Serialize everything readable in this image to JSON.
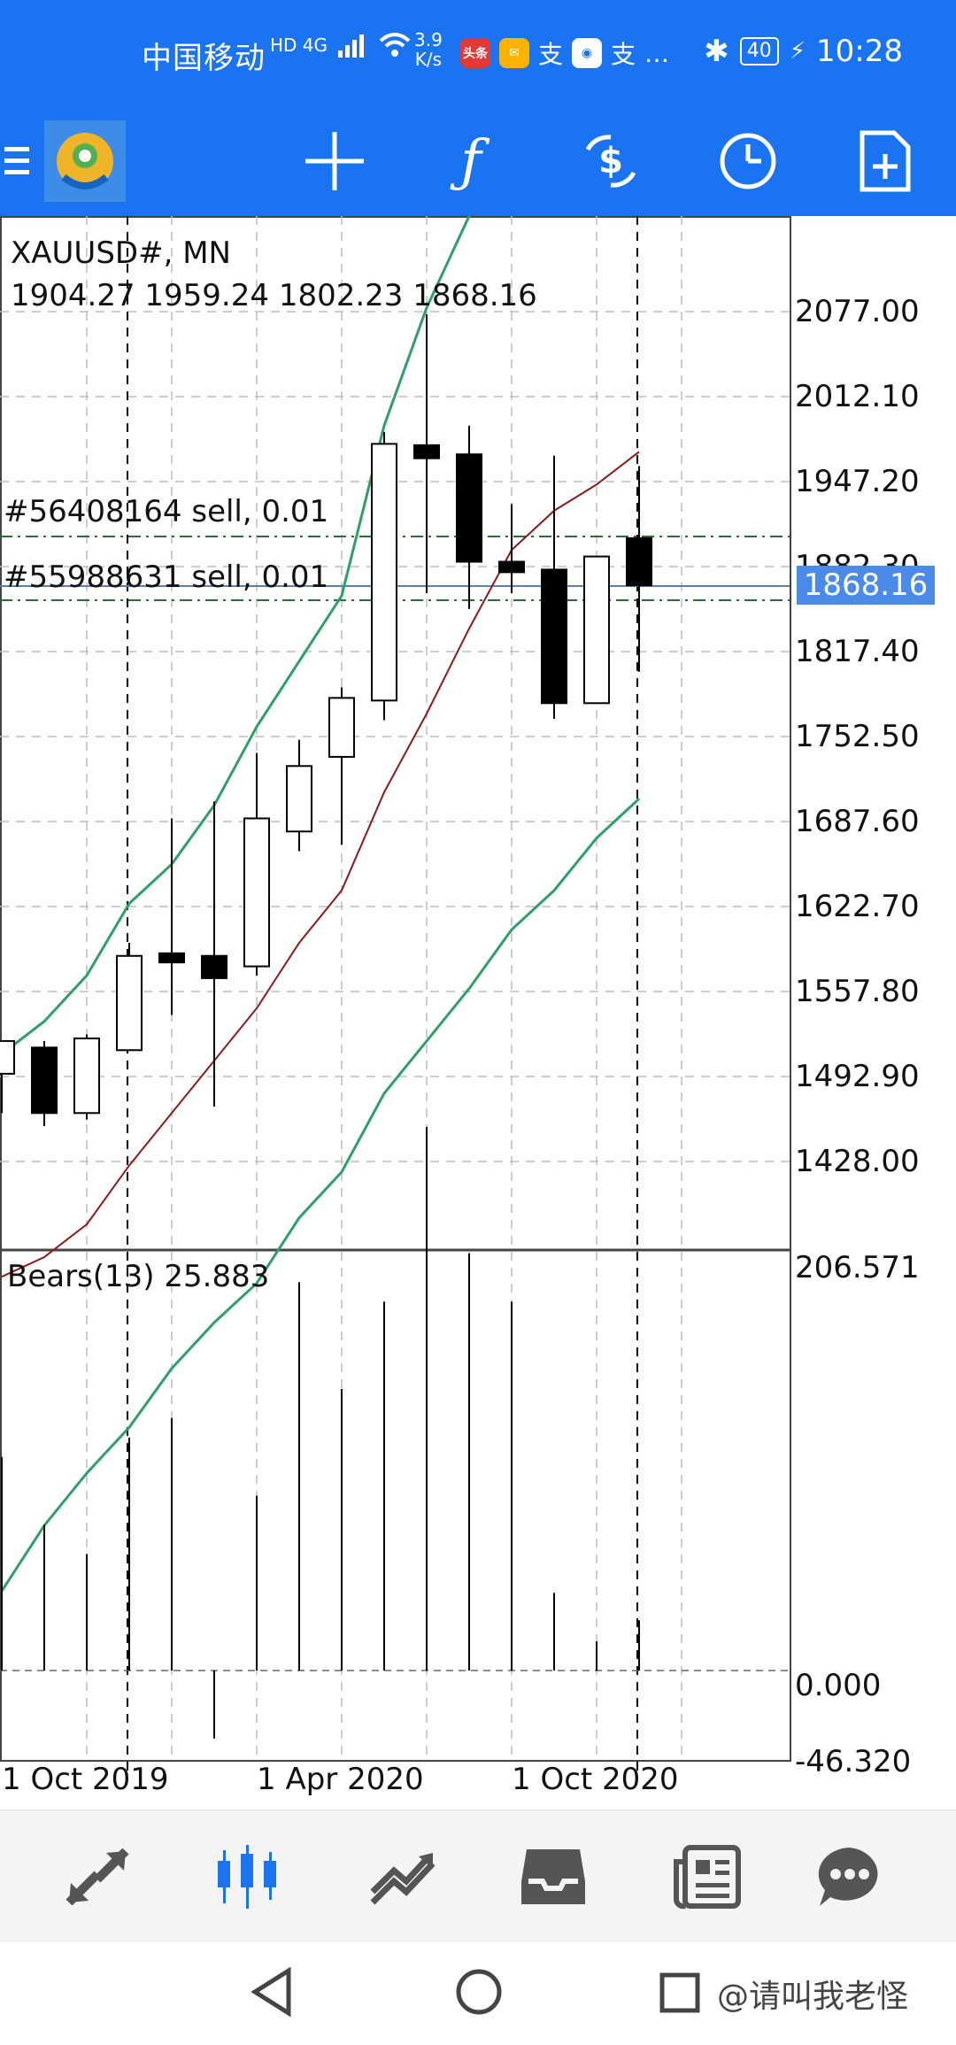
{
  "status_bar": {
    "carrier": "中国移动",
    "network": "HD 4G",
    "speed_value": "3.9",
    "speed_unit": "K/s",
    "app_badge_1": "头条",
    "battery": "40",
    "time": "10:28"
  },
  "toolbar": {
    "icons": [
      "mt4-logo-icon",
      "crosshair-icon",
      "function-icon",
      "currency-exchange-icon",
      "clock-icon",
      "new-order-icon"
    ]
  },
  "chart": {
    "symbol": "XAUUSD#, MN",
    "ohlc": "1904.27 1959.24 1802.23 1868.16",
    "orders": [
      "#56408164 sell, 0.01",
      "#55988631 sell, 0.01"
    ],
    "current_price": "1868.16",
    "price_axis": [
      "2077.00",
      "2012.10",
      "1947.20",
      "1882.30",
      "1817.40",
      "1752.50",
      "1687.60",
      "1622.70",
      "1557.80",
      "1492.90",
      "1428.00"
    ],
    "indicator_label": "Bears(13) 25.883",
    "indicator_axis": [
      "206.571",
      "0.000",
      "-46.320"
    ],
    "time_axis": [
      "1 Oct 2019",
      "1 Apr 2020",
      "1 Oct 2020"
    ],
    "colors": {
      "up_outline": "#000000",
      "bb_bands": "#2e9e6b",
      "middle_band": "#8b1a1a",
      "bid_line": "#5a7fb0",
      "grid": "#bdbdbd"
    }
  },
  "chart_data": {
    "type": "candlestick",
    "title": "XAUUSD#, MN",
    "candles_approx": [
      {
        "o": 1495,
        "h": 1520,
        "l": 1465,
        "c": 1520
      },
      {
        "o": 1515,
        "h": 1520,
        "l": 1455,
        "c": 1465
      },
      {
        "o": 1465,
        "h": 1525,
        "l": 1460,
        "c": 1522
      },
      {
        "o": 1513,
        "h": 1595,
        "l": 1513,
        "c": 1585
      },
      {
        "o": 1587,
        "h": 1690,
        "l": 1540,
        "c": 1580
      },
      {
        "o": 1585,
        "h": 1703,
        "l": 1470,
        "c": 1568
      },
      {
        "o": 1577,
        "h": 1740,
        "l": 1570,
        "c": 1690
      },
      {
        "o": 1680,
        "h": 1750,
        "l": 1665,
        "c": 1730
      },
      {
        "o": 1737,
        "h": 1790,
        "l": 1670,
        "c": 1782
      },
      {
        "o": 1780,
        "h": 1985,
        "l": 1765,
        "c": 1976
      },
      {
        "o": 1975,
        "h": 2075,
        "l": 1862,
        "c": 1965
      },
      {
        "o": 1968,
        "h": 1990,
        "l": 1850,
        "c": 1886
      },
      {
        "o": 1886,
        "h": 1930,
        "l": 1862,
        "c": 1878
      },
      {
        "o": 1880,
        "h": 1967,
        "l": 1766,
        "c": 1778
      },
      {
        "o": 1778,
        "h": 1887,
        "l": 1778,
        "c": 1890
      },
      {
        "o": 1904,
        "h": 1959,
        "l": 1802,
        "c": 1868
      }
    ],
    "bears_power": [
      110,
      75,
      60,
      120,
      130,
      -35,
      90,
      200,
      145,
      190,
      280,
      215,
      190,
      40,
      15,
      25.883
    ],
    "ylim": [
      1380,
      2120
    ],
    "indicator_ylim": [
      -46.32,
      206.571
    ]
  },
  "bottom_nav": [
    "trade-icon",
    "quotes-chart-icon",
    "history-icon",
    "mailbox-icon",
    "news-icon",
    "chat-icon"
  ],
  "system_nav": [
    "back-icon",
    "home-icon",
    "recents-icon"
  ],
  "watermark": "@请叫我老怪"
}
